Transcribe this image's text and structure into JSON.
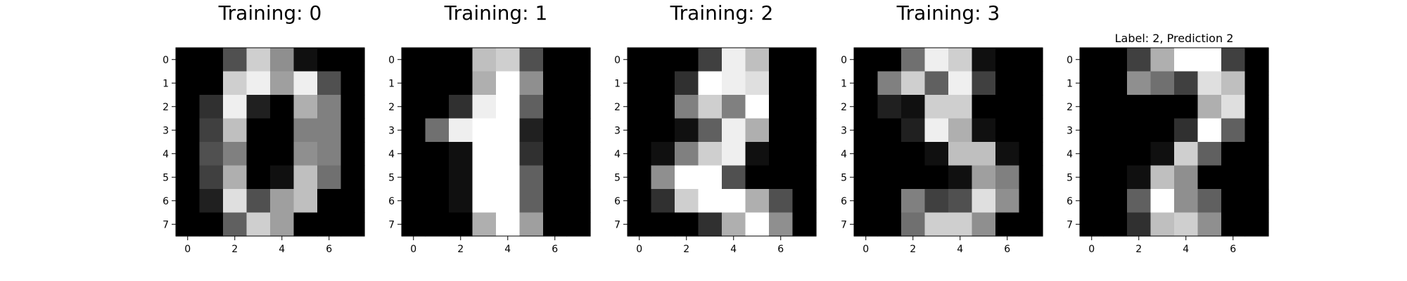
{
  "chart_data": [
    {
      "type": "heatmap",
      "title": "Training: 0",
      "xticks": [
        0,
        2,
        4,
        6
      ],
      "yticks": [
        0,
        1,
        2,
        3,
        4,
        5,
        6,
        7
      ],
      "grid": false,
      "colormap": "gray_r",
      "value_range": [
        0,
        16
      ],
      "values": [
        [
          0,
          0,
          5,
          13,
          9,
          1,
          0,
          0
        ],
        [
          0,
          0,
          13,
          15,
          10,
          15,
          5,
          0
        ],
        [
          0,
          3,
          15,
          2,
          0,
          11,
          8,
          0
        ],
        [
          0,
          4,
          12,
          0,
          0,
          8,
          8,
          0
        ],
        [
          0,
          5,
          8,
          0,
          0,
          9,
          8,
          0
        ],
        [
          0,
          4,
          11,
          0,
          1,
          12,
          7,
          0
        ],
        [
          0,
          2,
          14,
          5,
          10,
          12,
          0,
          0
        ],
        [
          0,
          0,
          6,
          13,
          10,
          0,
          0,
          0
        ]
      ]
    },
    {
      "type": "heatmap",
      "title": "Training: 1",
      "xticks": [
        0,
        2,
        4,
        6
      ],
      "yticks": [
        0,
        1,
        2,
        3,
        4,
        5,
        6,
        7
      ],
      "grid": false,
      "colormap": "gray_r",
      "value_range": [
        0,
        16
      ],
      "values": [
        [
          0,
          0,
          0,
          12,
          13,
          5,
          0,
          0
        ],
        [
          0,
          0,
          0,
          11,
          16,
          9,
          0,
          0
        ],
        [
          0,
          0,
          3,
          15,
          16,
          6,
          0,
          0
        ],
        [
          0,
          7,
          15,
          16,
          16,
          2,
          0,
          0
        ],
        [
          0,
          0,
          1,
          16,
          16,
          3,
          0,
          0
        ],
        [
          0,
          0,
          1,
          16,
          16,
          6,
          0,
          0
        ],
        [
          0,
          0,
          1,
          16,
          16,
          6,
          0,
          0
        ],
        [
          0,
          0,
          0,
          11,
          16,
          10,
          0,
          0
        ]
      ]
    },
    {
      "type": "heatmap",
      "title": "Training: 2",
      "xticks": [
        0,
        2,
        4,
        6
      ],
      "yticks": [
        0,
        1,
        2,
        3,
        4,
        5,
        6,
        7
      ],
      "grid": false,
      "colormap": "gray_r",
      "value_range": [
        0,
        16
      ],
      "values": [
        [
          0,
          0,
          0,
          4,
          15,
          12,
          0,
          0
        ],
        [
          0,
          0,
          3,
          16,
          15,
          14,
          0,
          0
        ],
        [
          0,
          0,
          8,
          13,
          8,
          16,
          0,
          0
        ],
        [
          0,
          0,
          1,
          6,
          15,
          11,
          0,
          0
        ],
        [
          0,
          1,
          8,
          13,
          15,
          1,
          0,
          0
        ],
        [
          0,
          9,
          16,
          16,
          5,
          0,
          0,
          0
        ],
        [
          0,
          3,
          13,
          16,
          16,
          11,
          5,
          0
        ],
        [
          0,
          0,
          0,
          3,
          11,
          16,
          9,
          0
        ]
      ]
    },
    {
      "type": "heatmap",
      "title": "Training: 3",
      "xticks": [
        0,
        2,
        4,
        6
      ],
      "yticks": [
        0,
        1,
        2,
        3,
        4,
        5,
        6,
        7
      ],
      "grid": false,
      "colormap": "gray_r",
      "value_range": [
        0,
        16
      ],
      "values": [
        [
          0,
          0,
          7,
          15,
          13,
          1,
          0,
          0
        ],
        [
          0,
          8,
          13,
          6,
          15,
          4,
          0,
          0
        ],
        [
          0,
          2,
          1,
          13,
          13,
          0,
          0,
          0
        ],
        [
          0,
          0,
          2,
          15,
          11,
          1,
          0,
          0
        ],
        [
          0,
          0,
          0,
          1,
          12,
          12,
          1,
          0
        ],
        [
          0,
          0,
          0,
          0,
          1,
          10,
          8,
          0
        ],
        [
          0,
          0,
          8,
          4,
          5,
          14,
          9,
          0
        ],
        [
          0,
          0,
          7,
          13,
          13,
          9,
          0,
          0
        ]
      ]
    },
    {
      "type": "heatmap",
      "title": "Label: 2, Prediction 2",
      "xticks": [
        0,
        2,
        4,
        6
      ],
      "yticks": [
        0,
        1,
        2,
        3,
        4,
        5,
        6,
        7
      ],
      "grid": false,
      "colormap": "gray_r",
      "value_range": [
        0,
        16
      ],
      "values": [
        [
          0,
          0,
          4,
          11,
          16,
          16,
          4,
          0
        ],
        [
          0,
          0,
          9,
          7,
          4,
          14,
          12,
          0
        ],
        [
          0,
          0,
          0,
          0,
          0,
          11,
          14,
          0
        ],
        [
          0,
          0,
          0,
          0,
          3,
          16,
          6,
          0
        ],
        [
          0,
          0,
          0,
          1,
          13,
          6,
          0,
          0
        ],
        [
          0,
          0,
          1,
          12,
          9,
          0,
          0,
          0
        ],
        [
          0,
          0,
          6,
          16,
          9,
          6,
          0,
          0
        ],
        [
          0,
          0,
          3,
          12,
          13,
          9,
          0,
          0
        ]
      ]
    }
  ]
}
